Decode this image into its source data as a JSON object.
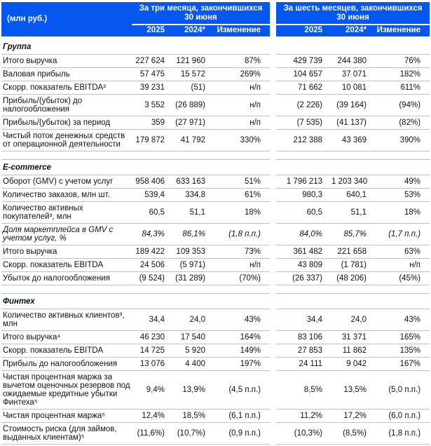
{
  "colors": {
    "header_blue": "#0557f0",
    "row_line": "#b9c2cb",
    "header_text": "#ffffff",
    "body_text": "#111111"
  },
  "header": {
    "unit_label": "(млн руб.)",
    "group1": "За три месяца, закончившихся 30 июня",
    "group2": "За шесть месяцев, закончившихся 30 июня",
    "columns": [
      "2025",
      "2024*",
      "Изменение"
    ]
  },
  "sections": [
    {
      "title": "Группа",
      "rows": [
        {
          "label": "Итого выручка",
          "values": [
            "227 624",
            "121 960",
            "87%",
            "429 739",
            "244 380",
            "76%"
          ]
        },
        {
          "label": "Валовая прибыль",
          "values": [
            "57 475",
            "15 572",
            "269%",
            "104 657",
            "37 071",
            "182%"
          ]
        },
        {
          "label": "Скорр. показатель EBITDA²",
          "values": [
            "39 231",
            "(51)",
            "н/п",
            "71 662",
            "10 081",
            "611%"
          ]
        },
        {
          "label": "Прибыль/(убыток) до налогообложения",
          "values": [
            "3 552",
            "(26 889)",
            "н/п",
            "(2 226)",
            "(39 164)",
            "(94%)"
          ]
        },
        {
          "label": "Прибыль/(убыток) за период",
          "values": [
            "359",
            "(27 971)",
            "н/п",
            "(7 535)",
            "(41 137)",
            "(82%)"
          ]
        },
        {
          "label": "Чистый поток денежных средств от операционной деятельности",
          "values": [
            "179 872",
            "41 792",
            "330%",
            "212 388",
            "43 369",
            "390%"
          ]
        }
      ]
    },
    {
      "title": "E-commerce",
      "rows": [
        {
          "label": "Оборот (GMV) с учетом услуг",
          "values": [
            "958 406",
            "633 163",
            "51%",
            "1 796 213",
            "1 203 340",
            "49%"
          ]
        },
        {
          "label": "Количество заказов, млн шт.",
          "values": [
            "539,4",
            "334,8",
            "61%",
            "980,3",
            "640,1",
            "53%"
          ]
        },
        {
          "label": "Количество активных покупателей³, млн",
          "values": [
            "60,5",
            "51,1",
            "18%",
            "60,5",
            "51,1",
            "18%"
          ]
        },
        {
          "label": "Доля маркетплейса в GMV с учетом услуг, %",
          "italic": true,
          "values": [
            "84,3%",
            "86,1%",
            "(1,8 п.п.)",
            "84,0%",
            "85,7%",
            "(1,7 п.п.)"
          ]
        },
        {
          "label": "Итого выручка",
          "values": [
            "189 422",
            "109 353",
            "73%",
            "361 482",
            "221 658",
            "63%"
          ]
        },
        {
          "label": "Скорр. показатель EBITDA",
          "values": [
            "24 506",
            "(5 971)",
            "н/п",
            "43 809",
            "(1 781)",
            "н/п"
          ]
        },
        {
          "label": "Убыток до налогообложения",
          "values": [
            "(9 524)",
            "(31 289)",
            "(70%)",
            "(26 337)",
            "(48 206)",
            "(45%)"
          ]
        }
      ]
    },
    {
      "title": "Финтех",
      "rows": [
        {
          "label": "Количество активных клиентов³, млн",
          "values": [
            "34,4",
            "24,0",
            "43%",
            "34,4",
            "24,0",
            "43%"
          ]
        },
        {
          "label": "Итого выручка⁴",
          "values": [
            "46 230",
            "17 540",
            "164%",
            "83 106",
            "31 371",
            "165%"
          ]
        },
        {
          "label": "Скорр. показатель EBITDA",
          "values": [
            "14 725",
            "5 920",
            "149%",
            "27 853",
            "11 862",
            "135%"
          ]
        },
        {
          "label": "Прибыль до налогообложения",
          "values": [
            "13 076",
            "4 400",
            "197%",
            "24 111",
            "9 042",
            "167%"
          ]
        },
        {
          "label": "Чистая процентная маржа за вычетом оценочных резервов под ожидаемые кредитные убытки Финтеха⁵",
          "values": [
            "9,4%",
            "13,9%",
            "(4,5 п.п.)",
            "8,5%",
            "13,5%",
            "(5,0 п.п.)"
          ]
        },
        {
          "label": "Чистая процентная маржа⁵",
          "values": [
            "12,4%",
            "18,5%",
            "(6,1 п.п.)",
            "11,2%",
            "17,2%",
            "(6,0 п.п.)"
          ]
        },
        {
          "label": "Стоимость риска (для займов, выданных клиентам)⁵",
          "values": [
            "(11,6%)",
            "(10,7%)",
            "(0,9 п.п.)",
            "(10,3%)",
            "(8,5%)",
            "(1,8 п.п.)"
          ]
        }
      ]
    }
  ]
}
